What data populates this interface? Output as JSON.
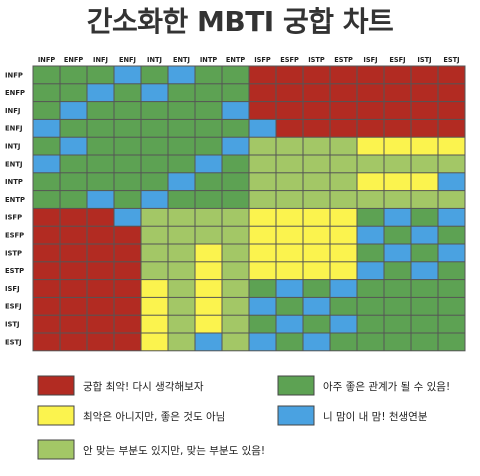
{
  "title": "간소화한 MBTI 궁합 차트",
  "chart_data": {
    "type": "heatmap",
    "title": "간소화한 MBTI 궁합 차트",
    "types": [
      "INFP",
      "ENFP",
      "INFJ",
      "ENFJ",
      "INTJ",
      "ENTJ",
      "INTP",
      "ENTP",
      "ISFP",
      "ESFP",
      "ISTP",
      "ESTP",
      "ISFJ",
      "ESFJ",
      "ISTJ",
      "ESTJ"
    ],
    "colors": {
      "worst": "#b22b22",
      "not_bad": "#fbf34e",
      "partial": "#a3c766",
      "good": "#5da253",
      "perfect": "#4aa2e1"
    },
    "legend": [
      {
        "key": "worst",
        "label": "궁합 최악! 다시 생각해보자"
      },
      {
        "key": "good",
        "label": "아주 좋은 관계가 될 수 있음!"
      },
      {
        "key": "not_bad",
        "label": "최악은 아니지만, 좋은 것도 아님"
      },
      {
        "key": "perfect",
        "label": "니 맘이 내 맘! 천생연분"
      },
      {
        "key": "partial",
        "label": "안 맞는 부분도 있지만, 맞는 부분도 있음!"
      }
    ],
    "codes": {
      "R": "worst",
      "Y": "not_bad",
      "L": "partial",
      "G": "good",
      "B": "perfect"
    },
    "matrix": [
      "GGGBGBGGRRRRRRRR",
      "GGBGBGGGRRRRRRRR",
      "GBGGGGGBRRRRRRRR",
      "BGGGGGGGBRRRRRRR",
      "GBGGGGGBLLLLYYYY",
      "BGGGGGBGLLLLLLLL",
      "GGGGGBGGLLLLYYYB",
      "GGBGBGGGLLLLLLLL",
      "RRRBLLLLYYYYGBGB",
      "RRRRLLLLYYYYBGBG",
      "RRRRLLYLYYYYGBGB",
      "RRRRLLYLYYYYBGBG",
      "RRRRYLYLGBGBGGGG",
      "RRRRYLYLBGBGGGGG",
      "RRRRYLYLGBGBGGGG",
      "RRRRYLBLBGBGGGGG"
    ]
  }
}
